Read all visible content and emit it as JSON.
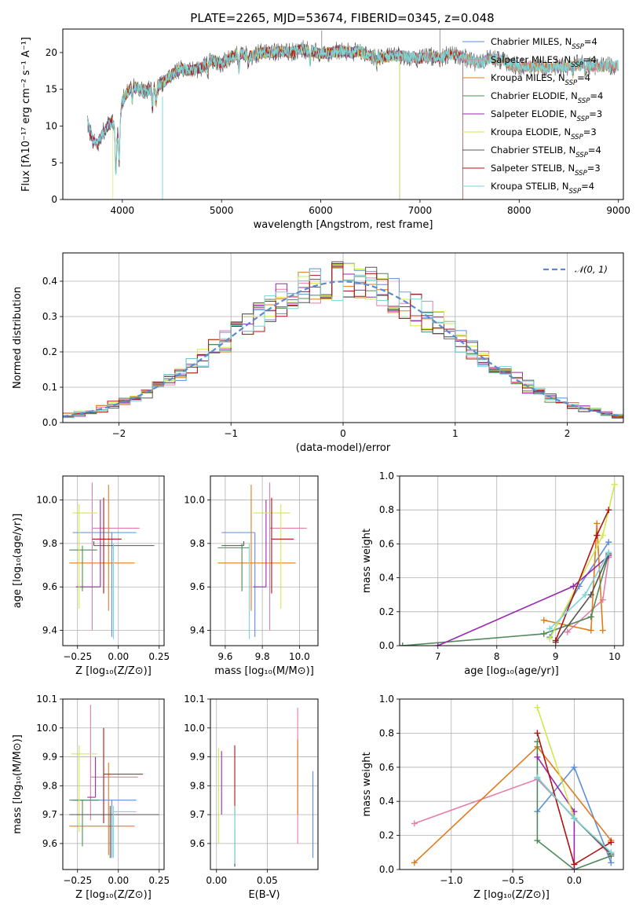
{
  "colors": [
    "#5b8fd9",
    "#e67ca8",
    "#e07b1c",
    "#4f8a5b",
    "#9b27b0",
    "#d3e84a",
    "#555555",
    "#b01313",
    "#78d6d6"
  ],
  "figure_title": "PLATE=2265, MJD=53674, FIBERID=0345, z=0.048",
  "chart_data": [
    {
      "id": "spectrum",
      "type": "line",
      "title": "PLATE=2265, MJD=53674, FIBERID=0345, z=0.048",
      "xlabel": "wavelength [Angstrom, rest frame]",
      "ylabel": "Flux [fλ10⁻¹⁷ erg cm⁻² s⁻¹ A⁻¹]",
      "xlim": [
        3400,
        9050
      ],
      "ylim": [
        0,
        23.2
      ],
      "xticks": [
        4000,
        5000,
        6000,
        7000,
        8000,
        9000
      ],
      "yticks": [
        0,
        5,
        10,
        15,
        20
      ],
      "grid": false,
      "legend_position": "upper right",
      "series": [
        {
          "name": "Chabrier MILES, N",
          "sub": "SSP",
          "suffix": "=4"
        },
        {
          "name": "Salpeter MILES, N",
          "sub": "SSP",
          "suffix": "=4"
        },
        {
          "name": "Kroupa MILES, N",
          "sub": "SSP",
          "suffix": "=4"
        },
        {
          "name": "Chabrier ELODIE, N",
          "sub": "SSP",
          "suffix": "=4"
        },
        {
          "name": "Salpeter ELODIE, N",
          "sub": "SSP",
          "suffix": "=3"
        },
        {
          "name": "Kroupa ELODIE, N",
          "sub": "SSP",
          "suffix": "=3"
        },
        {
          "name": "Chabrier STELIB, N",
          "sub": "SSP",
          "suffix": "=4"
        },
        {
          "name": "Salpeter STELIB, N",
          "sub": "SSP",
          "suffix": "=3"
        },
        {
          "name": "Kroupa STELIB, N",
          "sub": "SSP",
          "suffix": "=4"
        }
      ],
      "continuum": {
        "x": [
          3650,
          3700,
          3750,
          3800,
          3850,
          3900,
          3950,
          4000,
          4100,
          4200,
          4300,
          4400,
          4500,
          4600,
          4700,
          4800,
          4900,
          5000,
          5100,
          5200,
          5300,
          5400,
          5500,
          5600,
          5700,
          5800,
          5900,
          6000,
          6100,
          6200,
          6300,
          6400,
          6500,
          6600,
          6700,
          6800,
          6900,
          7000,
          7100,
          7200,
          7300,
          7400,
          7500,
          7600,
          7700,
          7800,
          7900,
          8000,
          8100,
          8200,
          8300,
          8400,
          8500,
          8600,
          8700,
          8800,
          8900,
          9000
        ],
        "y": [
          10.5,
          8.0,
          7.5,
          9.0,
          10.0,
          10.5,
          8.5,
          13.5,
          15.5,
          15.0,
          14.8,
          15.8,
          17.0,
          17.8,
          17.5,
          18.0,
          19.0,
          18.5,
          19.5,
          19.8,
          19.5,
          20.0,
          20.0,
          20.2,
          20.0,
          20.5,
          20.2,
          19.8,
          20.0,
          20.3,
          20.0,
          20.2,
          19.5,
          19.3,
          19.5,
          19.6,
          19.4,
          19.2,
          19.5,
          19.2,
          19.8,
          19.6,
          19.0,
          18.5,
          19.2,
          19.0,
          18.5,
          18.0,
          18.2,
          18.0,
          17.8,
          18.2,
          18.0,
          18.5,
          18.2,
          18.0,
          18.3,
          18.2
        ]
      }
    },
    {
      "id": "residuals",
      "type": "histogram",
      "xlabel": "(data-model)/error",
      "ylabel": "Normed distribution",
      "xlim": [
        -2.5,
        2.5
      ],
      "ylim": [
        0,
        0.48
      ],
      "xticks": [
        -2,
        -1,
        0,
        1,
        2
      ],
      "yticks": [
        0.0,
        0.1,
        0.2,
        0.3,
        0.4
      ],
      "grid": true,
      "bin_width": 0.1,
      "reference_curve": {
        "name": "𝒩(0, 1)",
        "kind": "gaussian",
        "mean": 0,
        "sigma": 1
      },
      "legend_position": "upper right"
    },
    {
      "id": "age-vs-Z",
      "type": "errorbar",
      "xlabel": "Z [log₁₀(Z/Z⊙)]",
      "ylabel": "age  [log₁₀(age/yr)]",
      "xlim": [
        -0.34,
        0.28
      ],
      "ylim": [
        9.33,
        10.11
      ],
      "xticks": [
        -0.25,
        0.0,
        0.25
      ],
      "xticklabels": [
        "−0.25",
        "0.00",
        "0.25"
      ],
      "yticks": [
        9.4,
        9.6,
        9.8,
        10.0
      ],
      "grid": true,
      "points": [
        {
          "x": -0.04,
          "xerr": [
            0.24,
            0.15
          ],
          "y": 9.85,
          "yerr": [
            0.48,
            0.0
          ]
        },
        {
          "x": -0.16,
          "xerr": [
            0.0,
            0.29
          ],
          "y": 9.87,
          "yerr": [
            0.47,
            0.21
          ]
        },
        {
          "x": -0.06,
          "xerr": [
            0.24,
            0.16
          ],
          "y": 9.71,
          "yerr": [
            0.22,
            0.36
          ]
        },
        {
          "x": -0.22,
          "xerr": [
            0.08,
            0.09
          ],
          "y": 9.77,
          "yerr": [
            0.19,
            0.02
          ]
        },
        {
          "x": -0.11,
          "xerr": [
            0.15,
            0.0
          ],
          "y": 9.6,
          "yerr": [
            0.0,
            0.4
          ]
        },
        {
          "x": -0.24,
          "xerr": [
            0.04,
            0.11
          ],
          "y": 9.94,
          "yerr": [
            0.44,
            0.04
          ]
        },
        {
          "x": -0.15,
          "xerr": [
            0.0,
            0.37
          ],
          "y": 9.79,
          "yerr": [
            0.0,
            0.02
          ]
        },
        {
          "x": -0.09,
          "xerr": [
            0.07,
            0.11
          ],
          "y": 9.82,
          "yerr": [
            0.25,
            0.19
          ]
        },
        {
          "x": -0.03,
          "xerr": [
            0.01,
            0.0
          ],
          "y": 9.78,
          "yerr": [
            0.42,
            0.02
          ]
        }
      ]
    },
    {
      "id": "age-vs-mass",
      "type": "errorbar",
      "xlabel": "mass [log₁₀(M/M⊙)]",
      "ylabel": "",
      "xlim": [
        9.52,
        10.1
      ],
      "ylim": [
        9.33,
        10.11
      ],
      "xticks": [
        9.6,
        9.8,
        10.0
      ],
      "yticks": [
        9.4,
        9.6,
        9.8,
        10.0
      ],
      "grid": true,
      "points": [
        {
          "x": 9.76,
          "xerr": [
            0.18,
            0.0
          ],
          "y": 9.85,
          "yerr": [
            0.48,
            0.0
          ]
        },
        {
          "x": 9.84,
          "xerr": [
            0.0,
            0.2
          ],
          "y": 9.87,
          "yerr": [
            0.47,
            0.21
          ]
        },
        {
          "x": 9.74,
          "xerr": [
            0.18,
            0.24
          ],
          "y": 9.71,
          "yerr": [
            0.22,
            0.36
          ]
        },
        {
          "x": 9.69,
          "xerr": [
            0.13,
            0.04
          ],
          "y": 9.78,
          "yerr": [
            0.2,
            0.02
          ]
        },
        {
          "x": 9.82,
          "xerr": [
            0.07,
            0.0
          ],
          "y": 9.6,
          "yerr": [
            0.0,
            0.4
          ]
        },
        {
          "x": 9.9,
          "xerr": [
            0.15,
            0.05
          ],
          "y": 9.94,
          "yerr": [
            0.44,
            0.04
          ]
        },
        {
          "x": 9.7,
          "xerr": [
            0.12,
            0.0
          ],
          "y": 9.79,
          "yerr": [
            0.0,
            0.02
          ]
        },
        {
          "x": 9.85,
          "xerr": [
            0.0,
            0.12
          ],
          "y": 9.82,
          "yerr": [
            0.25,
            0.19
          ]
        },
        {
          "x": 9.73,
          "xerr": [
            0.0,
            0.0
          ],
          "y": 9.78,
          "yerr": [
            0.42,
            0.02
          ]
        }
      ]
    },
    {
      "id": "mass-weight-vs-age",
      "type": "line",
      "xlabel": "age  [log₁₀(age/yr)]",
      "ylabel": "mass weight",
      "xlim": [
        6.35,
        10.15
      ],
      "ylim": [
        0,
        1.0
      ],
      "xticks": [
        7,
        8,
        9,
        10
      ],
      "yticks": [
        0.0,
        0.2,
        0.4,
        0.6,
        0.8,
        1.0
      ],
      "grid": true,
      "series": [
        {
          "x": [
            8.9,
            9.4,
            9.9
          ],
          "y": [
            0.05,
            0.35,
            0.61
          ]
        },
        {
          "x": [
            9.2,
            9.8,
            9.9
          ],
          "y": [
            0.08,
            0.27,
            0.52
          ]
        },
        {
          "x": [
            8.8,
            9.6,
            9.7,
            9.8
          ],
          "y": [
            0.15,
            0.09,
            0.72,
            0.09
          ]
        },
        {
          "x": [
            6.4,
            8.8,
            9.6,
            9.9
          ],
          "y": [
            0.0,
            0.07,
            0.17,
            0.54
          ]
        },
        {
          "x": [
            7.0,
            9.3,
            9.9
          ],
          "y": [
            0.0,
            0.35,
            0.53
          ]
        },
        {
          "x": [
            8.9,
            9.8,
            10.0
          ],
          "y": [
            0.04,
            0.65,
            0.95
          ]
        },
        {
          "x": [
            9.0,
            9.6,
            9.9
          ],
          "y": [
            0.02,
            0.3,
            0.54
          ]
        },
        {
          "x": [
            9.0,
            9.7,
            9.9
          ],
          "y": [
            0.03,
            0.65,
            0.8
          ]
        },
        {
          "x": [
            8.9,
            9.5,
            9.9
          ],
          "y": [
            0.1,
            0.3,
            0.55
          ]
        }
      ]
    },
    {
      "id": "mass-vs-Z",
      "type": "errorbar",
      "xlabel": "Z [log₁₀(Z/Z⊙)]",
      "ylabel": "mass [log₁₀(M/M⊙)]",
      "xlim": [
        -0.34,
        0.28
      ],
      "ylim": [
        9.51,
        10.1
      ],
      "xticks": [
        -0.25,
        0.0,
        0.25
      ],
      "xticklabels": [
        "−0.25",
        "0.00",
        "0.25"
      ],
      "yticks": [
        9.6,
        9.7,
        9.8,
        9.9,
        10.0,
        10.1
      ],
      "grid": true,
      "points": [
        {
          "x": -0.04,
          "xerr": [
            0.24,
            0.15
          ],
          "y": 9.75,
          "yerr": [
            0.2,
            0.0
          ]
        },
        {
          "x": -0.17,
          "xerr": [
            0.0,
            0.29
          ],
          "y": 9.83,
          "yerr": [
            0.15,
            0.25
          ]
        },
        {
          "x": -0.06,
          "xerr": [
            0.24,
            0.16
          ],
          "y": 9.66,
          "yerr": [
            0.1,
            0.22
          ]
        },
        {
          "x": -0.22,
          "xerr": [
            0.08,
            0.1
          ],
          "y": 9.75,
          "yerr": [
            0.16,
            0.0
          ]
        },
        {
          "x": -0.14,
          "xerr": [
            0.05,
            0.0
          ],
          "y": 9.76,
          "yerr": [
            0.0,
            0.14
          ]
        },
        {
          "x": -0.24,
          "xerr": [
            0.05,
            0.11
          ],
          "y": 9.91,
          "yerr": [
            0.27,
            0.03
          ]
        },
        {
          "x": -0.05,
          "xerr": [
            0.25,
            0.3
          ],
          "y": 9.7,
          "yerr": [
            0.15,
            0.03
          ]
        },
        {
          "x": -0.09,
          "xerr": [
            0.0,
            0.24
          ],
          "y": 9.84,
          "yerr": [
            0.17,
            0.16
          ]
        },
        {
          "x": -0.03,
          "xerr": [
            0.0,
            0.14
          ],
          "y": 9.71,
          "yerr": [
            0.16,
            0.02
          ]
        }
      ]
    },
    {
      "id": "mass-vs-ebv",
      "type": "errorbar",
      "xlabel": "E(B-V)",
      "ylabel": "",
      "xlim": [
        -0.006,
        0.1
      ],
      "ylim": [
        9.51,
        10.1
      ],
      "xticks": [
        0.0,
        0.05
      ],
      "xticklabels": [
        "0.00",
        "0.05"
      ],
      "yticks": [
        9.6,
        9.7,
        9.8,
        9.9,
        10.0,
        10.1
      ],
      "grid": true,
      "points": [
        {
          "x": 0.095,
          "xerr": [
            0,
            0
          ],
          "y": 9.7,
          "yerr": [
            0.15,
            0.15
          ]
        },
        {
          "x": 0.08,
          "xerr": [
            0,
            0
          ],
          "y": 9.85,
          "yerr": [
            0.25,
            0.22
          ]
        },
        {
          "x": 0.08,
          "xerr": [
            0,
            0
          ],
          "y": 9.85,
          "yerr": [
            0.15,
            0.11
          ]
        },
        {
          "x": 0.018,
          "xerr": [
            0,
            0
          ],
          "y": 9.62,
          "yerr": [
            0.1,
            0.11
          ]
        },
        {
          "x": 0.005,
          "xerr": [
            0,
            0
          ],
          "y": 9.83,
          "yerr": [
            0.13,
            0.09
          ]
        },
        {
          "x": 0.002,
          "xerr": [
            0,
            0
          ],
          "y": 9.8,
          "yerr": [
            0.2,
            0.13
          ]
        },
        {
          "x": 0.018,
          "xerr": [
            0,
            0
          ],
          "y": 9.6,
          "yerr": [
            0.08,
            0.05
          ]
        },
        {
          "x": 0.018,
          "xerr": [
            0,
            0
          ],
          "y": 9.82,
          "yerr": [
            0.12,
            0.12
          ]
        },
        {
          "x": 0.018,
          "xerr": [
            0,
            0
          ],
          "y": 9.63,
          "yerr": [
            0.1,
            0.1
          ]
        }
      ]
    },
    {
      "id": "mass-weight-vs-Z",
      "type": "line",
      "xlabel": "Z [log₁₀(Z/Z⊙)]",
      "ylabel": "mass weight",
      "xlim": [
        -1.42,
        0.4
      ],
      "ylim": [
        0,
        1.0
      ],
      "xticks": [
        -1.0,
        -0.5,
        0.0
      ],
      "xticklabels": [
        "−1.0",
        "−0.5",
        "0.0"
      ],
      "yticks": [
        0.0,
        0.2,
        0.4,
        0.6,
        0.8,
        1.0
      ],
      "grid": true,
      "series": [
        {
          "x": [
            -0.3,
            0.0,
            0.3
          ],
          "y": [
            0.34,
            0.6,
            0.04
          ]
        },
        {
          "x": [
            -1.3,
            -0.3,
            0.3
          ],
          "y": [
            0.27,
            0.53,
            0.08
          ]
        },
        {
          "x": [
            -1.3,
            -0.3,
            0.3
          ],
          "y": [
            0.04,
            0.72,
            0.17
          ]
        },
        {
          "x": [
            -0.3,
            -0.3,
            0.0,
            0.3
          ],
          "y": [
            0.75,
            0.17,
            0.0,
            0.08
          ]
        },
        {
          "x": [
            -0.3,
            0.0,
            0.0
          ],
          "y": [
            0.66,
            0.34,
            0.0
          ]
        },
        {
          "x": [
            -0.3,
            0.0,
            0.3
          ],
          "y": [
            0.95,
            0.3,
            0.1
          ]
        },
        {
          "x": [
            -0.3,
            0.0,
            0.3
          ],
          "y": [
            0.54,
            0.3,
            0.09
          ]
        },
        {
          "x": [
            -0.3,
            0.0,
            0.3
          ],
          "y": [
            0.8,
            0.03,
            0.16
          ]
        },
        {
          "x": [
            -0.3,
            0.0,
            0.3
          ],
          "y": [
            0.54,
            0.3,
            0.1
          ]
        }
      ]
    }
  ]
}
